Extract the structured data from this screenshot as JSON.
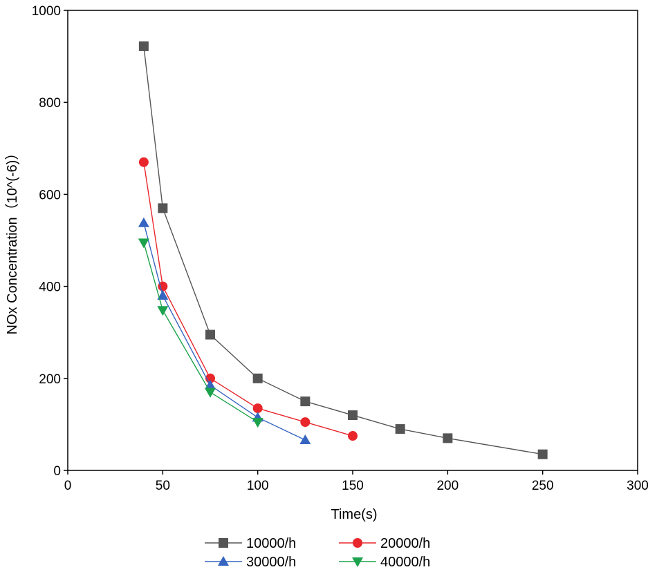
{
  "chart_data": {
    "type": "line",
    "title": "",
    "xlabel": "Time(s)",
    "ylabel": "NOx Concentration（10^(-6)）",
    "xlim": [
      0,
      300
    ],
    "ylim": [
      0,
      1000
    ],
    "xticks": [
      0,
      50,
      100,
      150,
      200,
      250,
      300
    ],
    "yticks": [
      0,
      200,
      400,
      600,
      800,
      1000
    ],
    "grid": false,
    "legend_position": "bottom-center",
    "series": [
      {
        "name": "10000/h",
        "color": "#555555",
        "marker": "square",
        "x": [
          40,
          50,
          75,
          100,
          125,
          150,
          175,
          200,
          250
        ],
        "y": [
          922,
          570,
          295,
          200,
          150,
          120,
          90,
          70,
          35
        ]
      },
      {
        "name": "20000/h",
        "color": "#e8262b",
        "marker": "circle",
        "x": [
          40,
          50,
          75,
          100,
          125,
          150
        ],
        "y": [
          670,
          400,
          200,
          135,
          105,
          75
        ]
      },
      {
        "name": "30000/h",
        "color": "#3565c0",
        "marker": "triangle-up",
        "x": [
          40,
          50,
          75,
          100,
          125
        ],
        "y": [
          538,
          380,
          185,
          115,
          66
        ]
      },
      {
        "name": "40000/h",
        "color": "#1ca24c",
        "marker": "triangle-down",
        "x": [
          40,
          50,
          75,
          100
        ],
        "y": [
          495,
          348,
          170,
          105
        ]
      }
    ]
  }
}
